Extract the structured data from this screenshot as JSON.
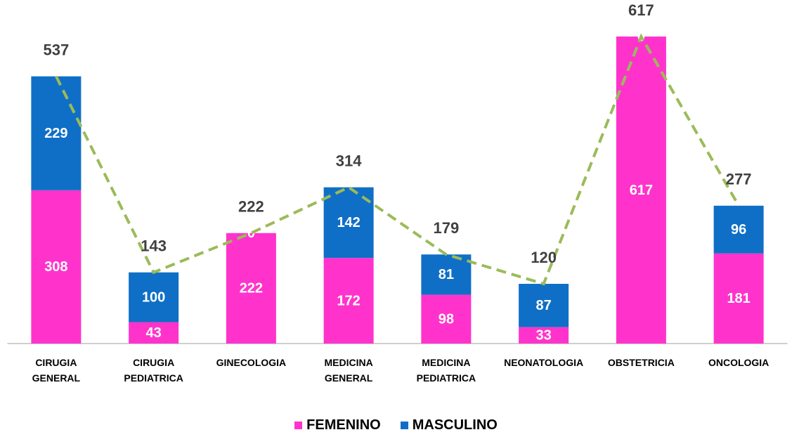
{
  "chart_data": {
    "type": "bar",
    "stacked": true,
    "categories": [
      "CIRUGIA GENERAL",
      "CIRUGIA PEDIATRICA",
      "GINECOLOGIA",
      "MEDICINA GENERAL",
      "MEDICINA PEDIATRICA",
      "NEONATOLOGIA",
      "OBSTETRICIA",
      "ONCOLOGIA"
    ],
    "series": [
      {
        "name": "FEMENINO",
        "color": "#FF33CC",
        "values": [
          308,
          43,
          222,
          172,
          98,
          33,
          617,
          181
        ]
      },
      {
        "name": "MASCULINO",
        "color": "#0F6FC6",
        "values": [
          229,
          100,
          0,
          142,
          81,
          87,
          0,
          96
        ]
      }
    ],
    "totals": {
      "color": "#9BBB59",
      "values": [
        537,
        143,
        222,
        314,
        179,
        120,
        617,
        277
      ]
    },
    "legend": "bottom"
  }
}
